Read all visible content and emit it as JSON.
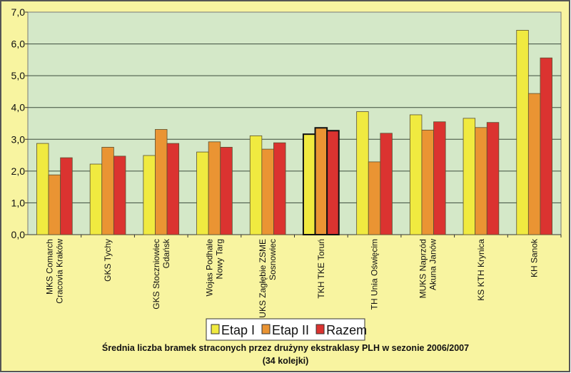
{
  "chart_data": {
    "type": "bar",
    "title": "Średnia liczba bramek straconych przez drużyny ekstraklasy PLH w sezonie 2006/2007",
    "subtitle": "(34 kolejki)",
    "categories": [
      [
        "MKS Comarch",
        "Cracovia Kraków"
      ],
      [
        "GKS Tychy"
      ],
      [
        "GKS Stoczniowiec",
        "Gdańsk"
      ],
      [
        "Wojas Podhale",
        "Nowy Targ"
      ],
      [
        "UKS Zagłębie ZSME",
        "Sosnowiec"
      ],
      [
        "TKH TKE Toruń"
      ],
      [
        "TH Unia Oświęcim"
      ],
      [
        "MUKS Naprzód",
        "Akuna Janów"
      ],
      [
        "KS KTH Krynica"
      ],
      [
        "KH Sanok"
      ]
    ],
    "highlight_index": 5,
    "series": [
      {
        "name": "Etap I",
        "color": "#f0ea40",
        "values": [
          2.87,
          2.22,
          2.49,
          2.6,
          3.11,
          3.16,
          3.87,
          3.77,
          3.66,
          6.43
        ]
      },
      {
        "name": "Etap II",
        "color": "#ea9433",
        "values": [
          1.88,
          2.75,
          3.31,
          2.92,
          2.69,
          3.36,
          2.29,
          3.29,
          3.37,
          4.44
        ]
      },
      {
        "name": "Razem",
        "color": "#db3330",
        "values": [
          2.42,
          2.47,
          2.87,
          2.75,
          2.89,
          3.27,
          3.19,
          3.55,
          3.53,
          5.56
        ]
      }
    ],
    "yticks": [
      "0,0",
      "1,0",
      "2,0",
      "3,0",
      "4,0",
      "5,0",
      "6,0",
      "7,0"
    ],
    "ylim": [
      0,
      7
    ],
    "grid": true,
    "legend": "bottom"
  }
}
